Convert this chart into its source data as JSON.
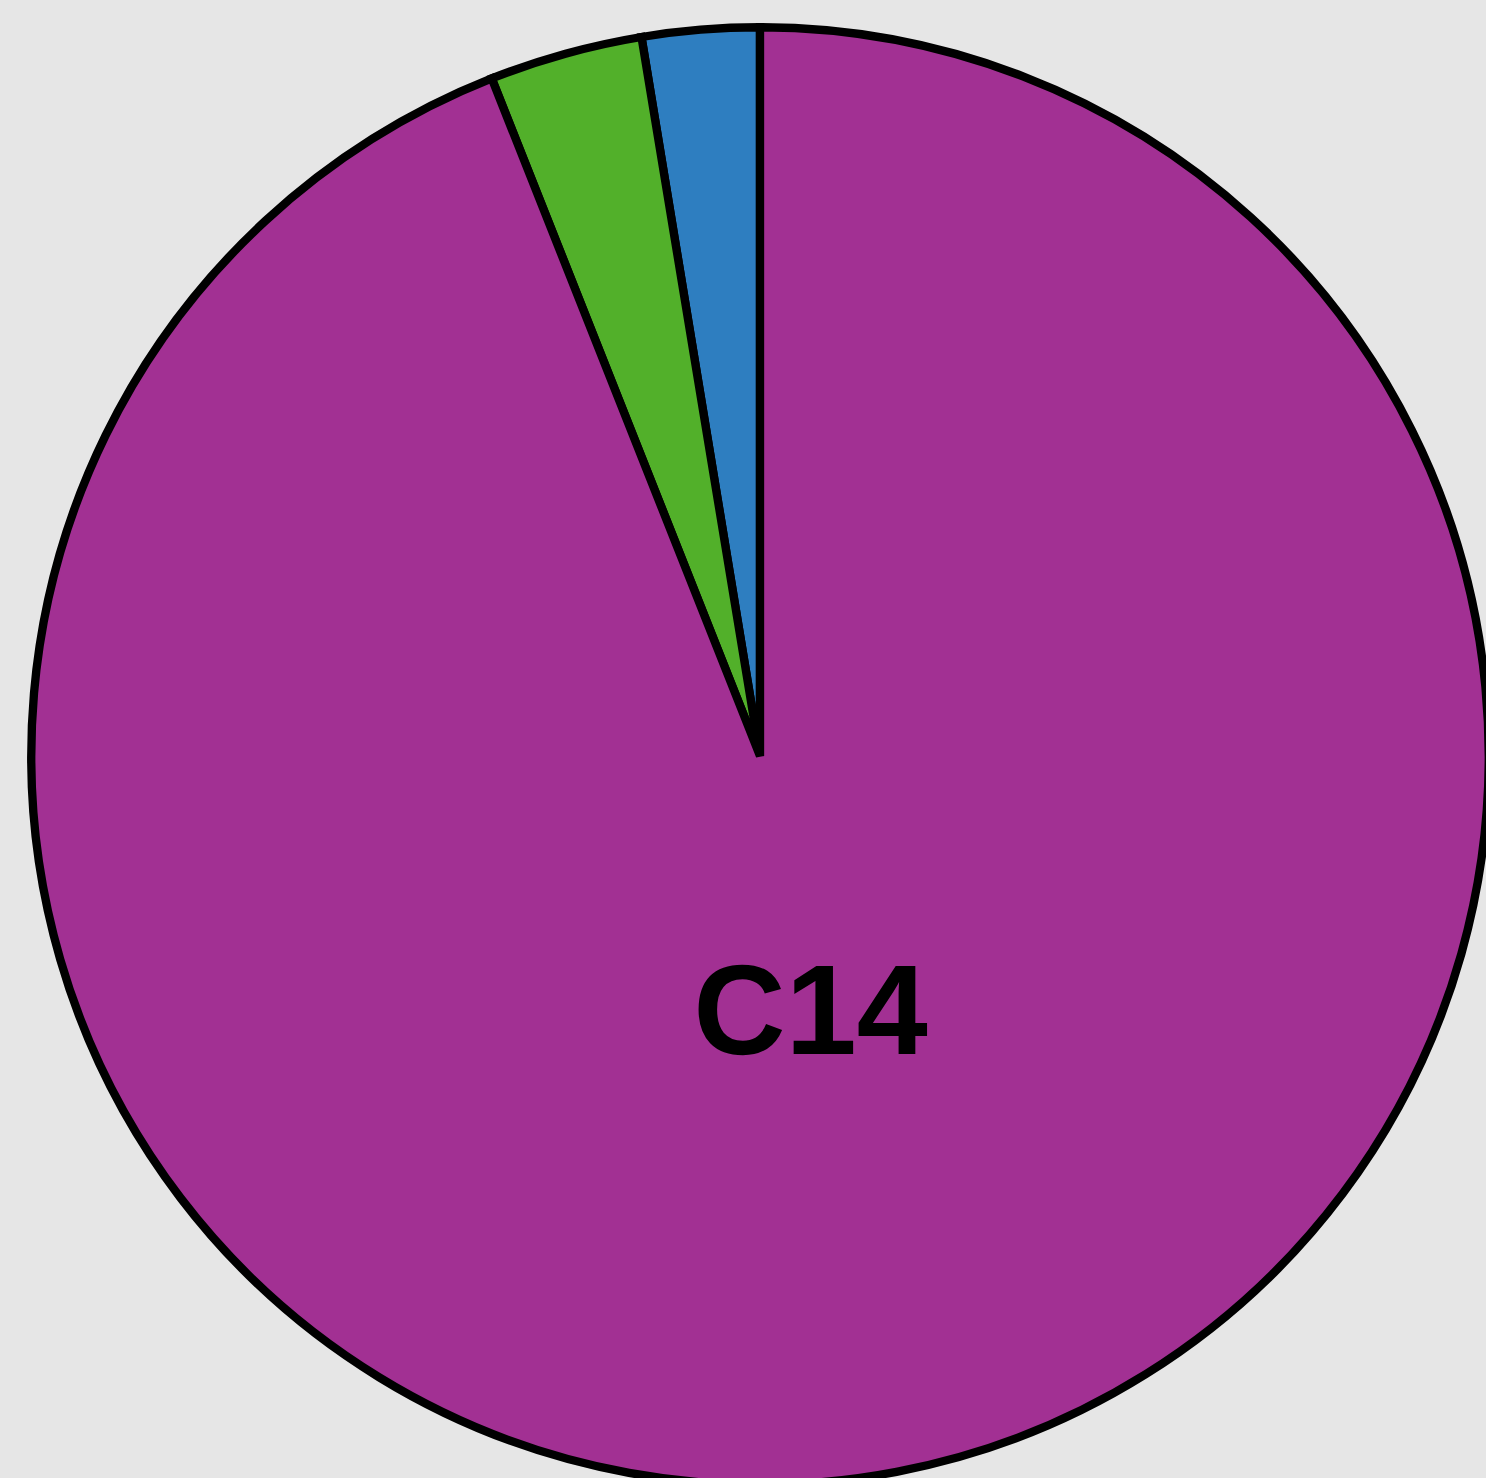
{
  "chart_data": {
    "type": "pie",
    "categories": [
      null,
      null,
      "C14"
    ],
    "values": [
      2.6,
      3.4,
      94.0
    ],
    "colors": [
      "#2e7ec0",
      "#52b02a",
      "#a23093"
    ]
  }
}
